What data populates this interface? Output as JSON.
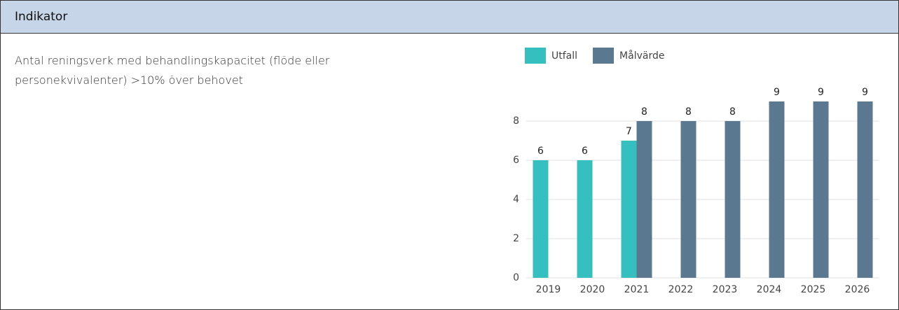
{
  "header": {
    "title": "Indikator"
  },
  "description": "Antal reningsverk med behandlingskapacitet (flöde eller personekvivalenter) >10% över behovet",
  "chart_data": {
    "type": "bar",
    "categories": [
      "2019",
      "2020",
      "2021",
      "2022",
      "2023",
      "2024",
      "2025",
      "2026"
    ],
    "series": [
      {
        "name": "Utfall",
        "color": "#36bfbf",
        "values": [
          6,
          6,
          7,
          null,
          null,
          null,
          null,
          null
        ]
      },
      {
        "name": "Målvärde",
        "color": "#5b7891",
        "values": [
          null,
          null,
          8,
          8,
          8,
          9,
          9,
          9
        ]
      }
    ],
    "ylim": [
      0,
      10
    ],
    "yticks": [
      0,
      2,
      4,
      6,
      8
    ],
    "grid": true,
    "legend": "top"
  }
}
